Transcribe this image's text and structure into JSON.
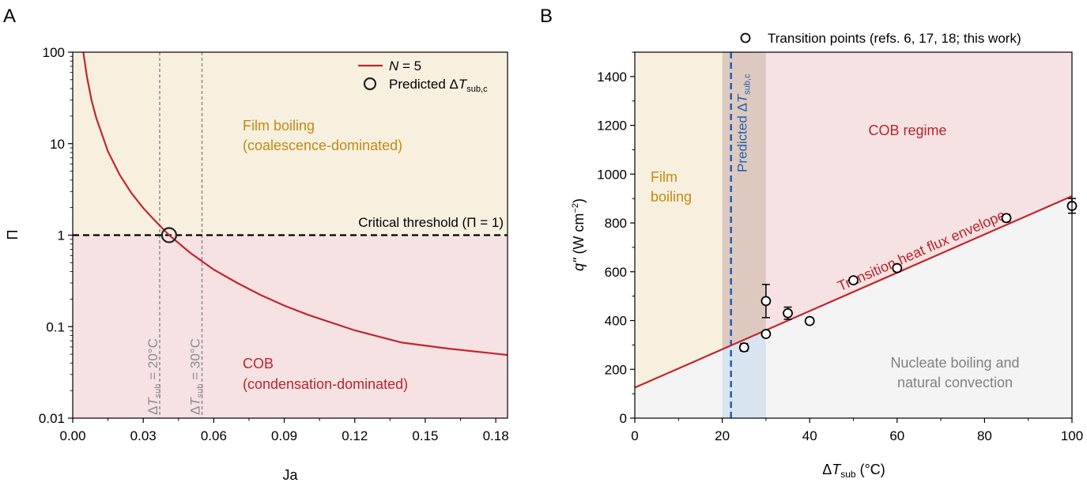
{
  "colors": {
    "film_fill": "#f8f0df",
    "cob_fill": "#f6e2e3",
    "nucleate_fill": "#f4f4f4",
    "transition_band": "#ddc9c0",
    "transition_band_low": "#d8e4f0",
    "red_curve": "#c0272d",
    "film_text": "#c08a12",
    "cob_text": "#b5262d",
    "grey_text": "#808080",
    "blue_dashed": "#1f5fae",
    "axis": "#000000"
  },
  "chart_data": [
    {
      "panel_label": "A",
      "type": "line",
      "xlabel": "Ja",
      "ylabel": "Π",
      "xlim": [
        0,
        0.185
      ],
      "ylim": [
        0.01,
        100
      ],
      "yscale": "log",
      "xticks": [
        0.0,
        0.03,
        0.06,
        0.09,
        0.12,
        0.15,
        0.18
      ],
      "xtick_labels": [
        "0.00",
        "0.03",
        "0.06",
        "0.09",
        "0.12",
        "0.15",
        "0.18"
      ],
      "yticks": [
        0.01,
        0.1,
        1,
        10,
        100
      ],
      "ytick_labels": [
        "0.01",
        "0.1",
        "1",
        "10",
        "100"
      ],
      "series": [
        {
          "name": "N = 5",
          "name_italic": "N",
          "name_rest": " = 5",
          "color": "#c0272d",
          "x": [
            0.0045,
            0.006,
            0.008,
            0.01,
            0.015,
            0.02,
            0.025,
            0.03,
            0.035,
            0.041,
            0.05,
            0.06,
            0.07,
            0.08,
            0.09,
            0.1,
            0.12,
            0.14,
            0.16,
            0.185
          ],
          "y": [
            100,
            54.8,
            29.8,
            19.2,
            8.2,
            4.55,
            2.88,
            1.98,
            1.44,
            1.0,
            0.64,
            0.42,
            0.3,
            0.222,
            0.17,
            0.135,
            0.091,
            0.067,
            0.0575,
            0.049
          ]
        }
      ],
      "marker": {
        "legend_prefix": "Predicted Δ",
        "legend_italic": "T",
        "legend_sub": "sub,c",
        "x": 0.041,
        "y": 1
      },
      "threshold": {
        "y": 1,
        "label": "Critical threshold (Π = 1)"
      },
      "vlines": [
        {
          "x": 0.037,
          "label_prefix": "Δ",
          "label_italic": "T",
          "label_sub": "sub",
          "label_rest": " = 20°C"
        },
        {
          "x": 0.055,
          "label_prefix": "Δ",
          "label_italic": "T",
          "label_sub": "sub",
          "label_rest": " = 30°C"
        }
      ],
      "regions": {
        "film_line1": "Film boiling",
        "film_line2": "(coalescence-dominated)",
        "cob_line1": "COB",
        "cob_line2": "(condensation-dominated)"
      },
      "legend_position": "top-right"
    },
    {
      "panel_label": "B",
      "type": "scatter",
      "xlabel_prefix": "Δ",
      "xlabel_italic": "T",
      "xlabel_sub": "sub",
      "xlabel_rest": " (°C)",
      "ylabel_italic": "q\"",
      "ylabel_rest": " (W cm",
      "ylabel_sup": "−2",
      "ylabel_end": ")",
      "xlim": [
        0,
        100
      ],
      "ylim": [
        0,
        1500
      ],
      "xticks": [
        0,
        20,
        40,
        60,
        80,
        100
      ],
      "xtick_labels": [
        "0",
        "20",
        "40",
        "60",
        "80",
        "100"
      ],
      "yticks": [
        0,
        200,
        400,
        600,
        800,
        1000,
        1200,
        1400
      ],
      "ytick_labels": [
        "0",
        "200",
        "400",
        "600",
        "800",
        "1000",
        "1200",
        "1400"
      ],
      "series": [
        {
          "name": "Transition points (refs. 6, 17, 18; this work)",
          "x": [
            25,
            30,
            30,
            35,
            40,
            50,
            60,
            85,
            100
          ],
          "y": [
            290,
            345,
            480,
            430,
            398,
            565,
            615,
            820,
            870
          ],
          "err": [
            15,
            12,
            68,
            25,
            12,
            12,
            12,
            15,
            30
          ]
        }
      ],
      "envelope": {
        "label": "Transition heat flux envelope",
        "x": [
          0,
          100
        ],
        "y": [
          125,
          910
        ]
      },
      "band": {
        "x": [
          20,
          30
        ]
      },
      "predicted_line": {
        "x": 22,
        "label_prefix": "Predicted Δ",
        "label_italic": "T",
        "label_sub": "sub,c"
      },
      "regions": {
        "film_line1": "Film",
        "film_line2": "boiling",
        "cob": "COB regime",
        "nucleate_line1": "Nucleate boiling and",
        "nucleate_line2": "natural convection"
      },
      "legend_position": "top"
    }
  ]
}
